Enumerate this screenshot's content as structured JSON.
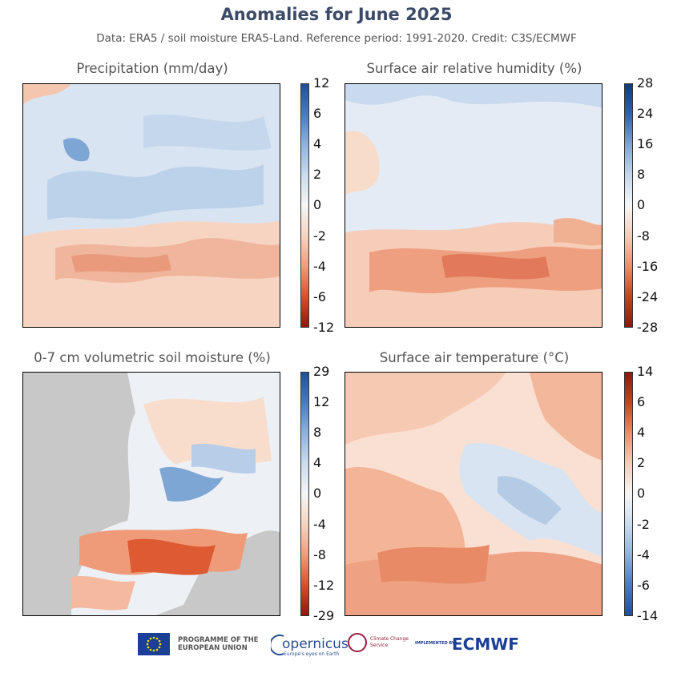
{
  "title": "Anomalies for June 2025",
  "subtitle": "Data: ERA5 / soil moisture ERA5-Land.  Reference period: 1991-2020.  Credit: C3S/ECMWF",
  "panels": [
    {
      "title": "Precipitation (mm/day)",
      "colormap": "diverging-red-blue",
      "ticks": [
        "12",
        "6",
        "4",
        "2",
        "0",
        "-2",
        "-4",
        "-6",
        "-12"
      ],
      "top_color": "#1f4f99",
      "bottom_color": "#8b1a0e",
      "dominant_pattern": "wetter north-central, drier south"
    },
    {
      "title": "Surface air relative humidity (%)",
      "colormap": "diverging-red-blue",
      "ticks": [
        "28",
        "24",
        "16",
        "8",
        "0",
        "-8",
        "-16",
        "-24",
        "-28"
      ],
      "top_color": "#0f3d7a",
      "bottom_color": "#8b1a0e",
      "dominant_pattern": "more humid north, drier south"
    },
    {
      "title": "0-7 cm volumetric soil moisture (%)",
      "colormap": "diverging-red-blue",
      "ticks": [
        "29",
        "12",
        "8",
        "4",
        "0",
        "-4",
        "-8",
        "-12",
        "-29"
      ],
      "top_color": "#1f4f99",
      "bottom_color": "#8b1a0e",
      "missing_color": "#c8c8c8",
      "dominant_pattern": "drier central-south, wetter Baltic"
    },
    {
      "title": "Surface air temperature (°C)",
      "colormap": "diverging-blue-red",
      "ticks": [
        "14",
        "6",
        "4",
        "2",
        "0",
        "-2",
        "-4",
        "-6",
        "-14"
      ],
      "top_color": "#8b1a0e",
      "bottom_color": "#1f4f99",
      "dominant_pattern": "warm west and south, cool north-east"
    }
  ],
  "footer": {
    "eu_label": "PROGRAMME OF THE EUROPEAN UNION",
    "copernicus_label": "opernicus",
    "copernicus_tagline": "Europe's eyes on Earth",
    "c3s_label": "Climate Change Service",
    "implemented_by": "IMPLEMENTED BY",
    "ecmwf_label": "ECMWF"
  }
}
